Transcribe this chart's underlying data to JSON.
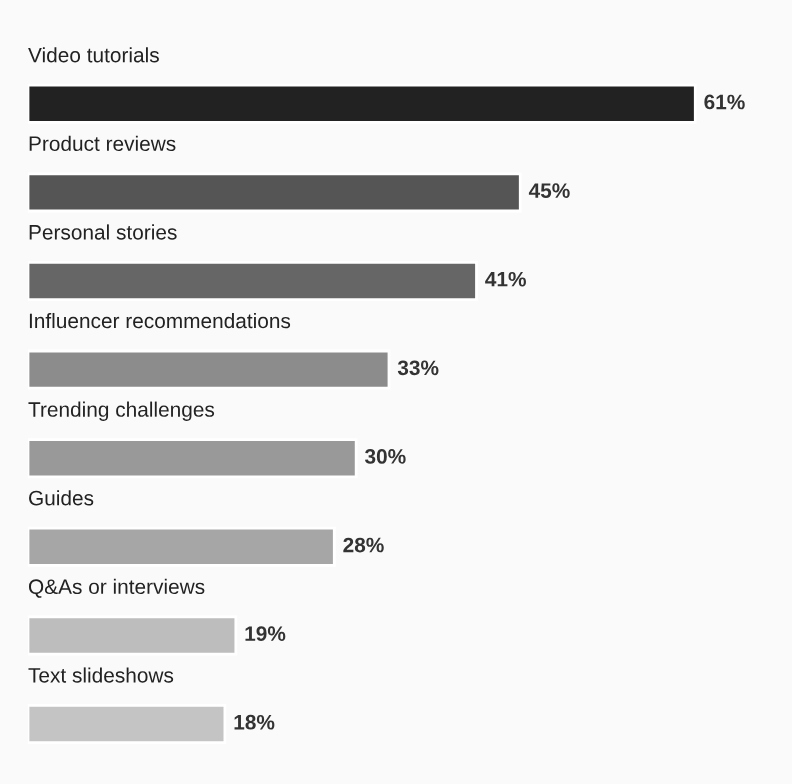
{
  "chart_data": {
    "type": "bar",
    "orientation": "horizontal",
    "categories": [
      "Video tutorials",
      "Product reviews",
      "Personal stories",
      "Influencer recommendations",
      "Trending challenges",
      "Guides",
      "Q&As or interviews",
      "Text slideshows"
    ],
    "values": [
      61,
      45,
      41,
      33,
      30,
      28,
      19,
      18
    ],
    "colors": [
      "#222222",
      "#555555",
      "#666666",
      "#8c8c8c",
      "#999999",
      "#a6a6a6",
      "#bdbdbd",
      "#c4c4c4"
    ],
    "value_labels": [
      "61%",
      "45%",
      "41%",
      "33%",
      "30%",
      "28%",
      "19%",
      "18%"
    ]
  }
}
